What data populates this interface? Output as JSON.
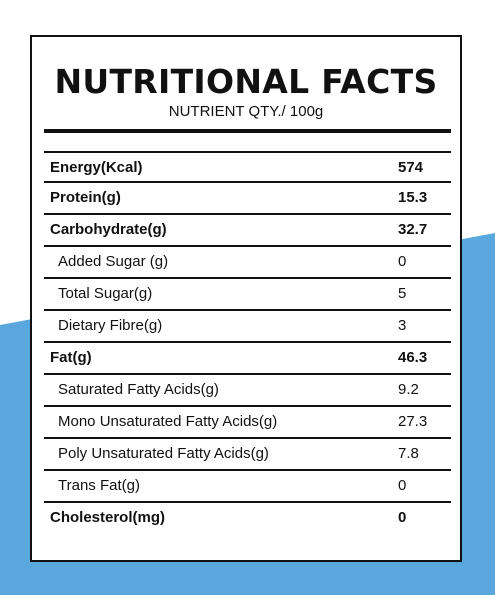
{
  "colors": {
    "background": "#ffffff",
    "accent_blue": "#5aa7de",
    "border": "#111111"
  },
  "label": {
    "title": "NUTRITIONAL FACTS",
    "subtitle": "NUTRIENT QTY./ 100g"
  },
  "rows": [
    {
      "name": "Energy(Kcal)",
      "value": "574",
      "bold": true
    },
    {
      "name": "Protein(g)",
      "value": "15.3",
      "bold": true
    },
    {
      "name": "Carbohydrate(g)",
      "value": "32.7",
      "bold": true
    },
    {
      "name": "Added Sugar (g)",
      "value": "0",
      "bold": false
    },
    {
      "name": "Total Sugar(g)",
      "value": "5",
      "bold": false
    },
    {
      "name": "Dietary Fibre(g)",
      "value": "3",
      "bold": false
    },
    {
      "name": "Fat(g)",
      "value": "46.3",
      "bold": true
    },
    {
      "name": "Saturated Fatty Acids(g)",
      "value": "9.2",
      "bold": false
    },
    {
      "name": "Mono Unsaturated Fatty Acids(g)",
      "value": "27.3",
      "bold": false
    },
    {
      "name": "Poly Unsaturated Fatty Acids(g)",
      "value": "7.8",
      "bold": false
    },
    {
      "name": "Trans Fat(g)",
      "value": "0",
      "bold": false
    },
    {
      "name": "Cholesterol(mg)",
      "value": "0",
      "bold": true
    }
  ]
}
